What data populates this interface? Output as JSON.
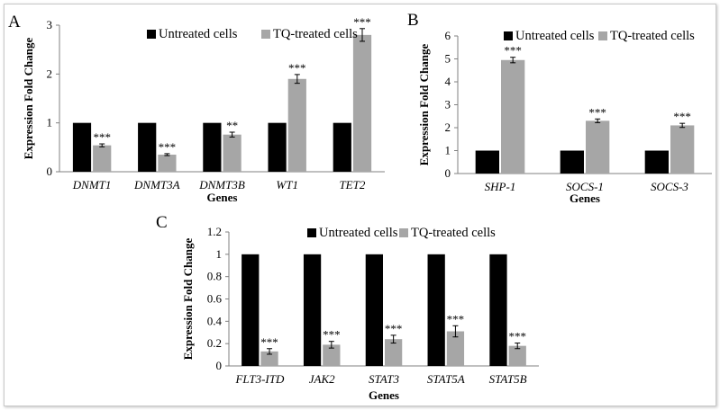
{
  "colors": {
    "untreated": "#000000",
    "treated": "#a6a6a6",
    "axis": "#808080",
    "text": "#000000"
  },
  "chart_data": [
    {
      "panel": "A",
      "type": "bar",
      "categories": [
        "DNMT1",
        "DNMT3A",
        "DNMT3B",
        "WT1",
        "TET2"
      ],
      "series": [
        {
          "name": "Untreated cells",
          "values": [
            1,
            1,
            1,
            1,
            1
          ]
        },
        {
          "name": "TQ-treated cells",
          "values": [
            0.54,
            0.35,
            0.76,
            1.9,
            2.8
          ],
          "errors": [
            0.03,
            0.02,
            0.05,
            0.09,
            0.13
          ]
        }
      ],
      "significance": [
        "***",
        "***",
        "**",
        "***",
        "***"
      ],
      "ylabel": "Expression Fold Change",
      "xlabel": "Genes",
      "ylim": [
        0,
        3
      ],
      "yticks": [
        0,
        1,
        2,
        3
      ],
      "legend": "top"
    },
    {
      "panel": "B",
      "type": "bar",
      "categories": [
        "SHP-1",
        "SOCS-1",
        "SOCS-3"
      ],
      "series": [
        {
          "name": "Untreated cells",
          "values": [
            1,
            1,
            1
          ]
        },
        {
          "name": "TQ-treated cells",
          "values": [
            4.95,
            2.3,
            2.1
          ],
          "errors": [
            0.12,
            0.08,
            0.09
          ]
        }
      ],
      "significance": [
        "***",
        "***",
        "***"
      ],
      "ylabel": "Expression Fold Change",
      "xlabel": "Genes",
      "ylim": [
        0,
        6
      ],
      "yticks": [
        0,
        1,
        2,
        3,
        4,
        5,
        6
      ],
      "legend": "top"
    },
    {
      "panel": "C",
      "type": "bar",
      "categories": [
        "FLT3-ITD",
        "JAK2",
        "STAT3",
        "STAT5A",
        "STAT5B"
      ],
      "series": [
        {
          "name": "Untreated cells",
          "values": [
            1,
            1,
            1,
            1,
            1
          ]
        },
        {
          "name": "TQ-treated cells",
          "values": [
            0.13,
            0.19,
            0.24,
            0.31,
            0.18
          ],
          "errors": [
            0.025,
            0.03,
            0.035,
            0.05,
            0.025
          ]
        }
      ],
      "significance": [
        "***",
        "***",
        "***",
        "***",
        "***"
      ],
      "ylabel": "Expression Fold Change",
      "xlabel": "Genes",
      "ylim": [
        0,
        1.2
      ],
      "yticks": [
        0,
        0.2,
        0.4,
        0.6,
        0.8,
        1,
        1.2
      ],
      "legend": "top"
    }
  ]
}
